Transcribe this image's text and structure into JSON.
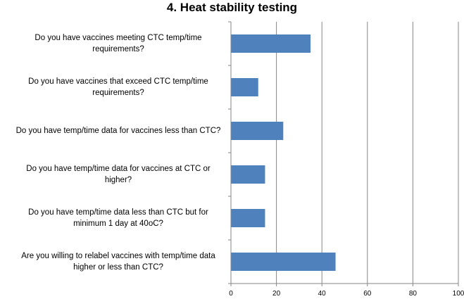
{
  "chart_data": {
    "type": "bar",
    "orientation": "horizontal",
    "title": "4. Heat stability testing",
    "categories": [
      "Do you have vaccines meeting CTC temp/time requirements?",
      "Do you have vaccines that exceed CTC temp/time requirements?",
      "Do you have temp/time data for vaccines less than CTC?",
      "Do you have temp/time data for vaccines at CTC or higher?",
      "Do you have temp/time data less than CTC but for minimum 1 day at 40oC?",
      "Are you willing to relabel vaccines with temp/time data higher or less than CTC?"
    ],
    "values": [
      35,
      12,
      23,
      15,
      15,
      46
    ],
    "xlim": [
      0,
      100
    ],
    "xticks": [
      0,
      20,
      40,
      60,
      80,
      100
    ],
    "xlabel": "",
    "ylabel": "",
    "grid": true,
    "bar_color": "#4f81bd"
  }
}
